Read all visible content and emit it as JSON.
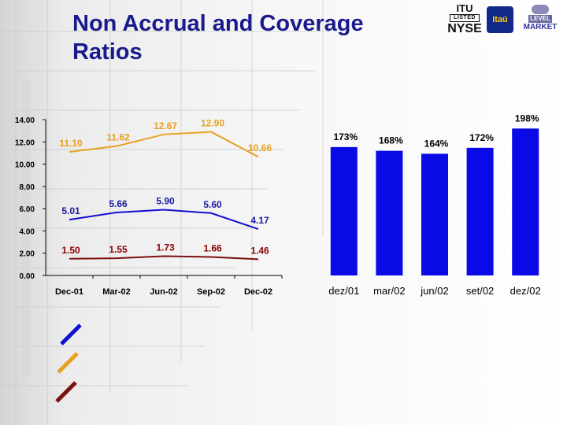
{
  "slide": {
    "title": "Non Accrual and Coverage Ratios"
  },
  "logos": {
    "itu_top": "ITU",
    "itu_listed": "LISTED",
    "itu_exchange": "NYSE",
    "itau": "Itaú",
    "level": "LEVEL",
    "market": "MARKET"
  },
  "colors": {
    "title": "#1a1a8c",
    "blue_series": "#1010d0",
    "orange_series": "#e8a020",
    "maroon_series": "#7a1010",
    "bars": "#0a0ae6",
    "label_orange": "#e8a020",
    "label_blue": "#1a1aa0",
    "label_maroon": "#8b0000"
  },
  "legend": {
    "items": [
      {
        "color_key": "blue_series"
      },
      {
        "color_key": "orange_series"
      },
      {
        "color_key": "maroon_series"
      }
    ]
  },
  "chart_data": [
    {
      "type": "line",
      "categories": [
        "Dec-01",
        "Mar-02",
        "Jun-02",
        "Sep-02",
        "Dec-02"
      ],
      "series": [
        {
          "values": [
            11.1,
            11.62,
            12.67,
            12.9,
            10.66
          ],
          "labels": [
            "11.10",
            "11.62",
            "12.67",
            "12.90",
            "10.66"
          ],
          "color_key": "orange_series"
        },
        {
          "values": [
            5.01,
            5.66,
            5.9,
            5.6,
            4.17
          ],
          "labels": [
            "5.01",
            "5.66",
            "5.90",
            "5.60",
            "4.17"
          ],
          "color_key": "blue_series"
        },
        {
          "values": [
            1.5,
            1.55,
            1.73,
            1.66,
            1.46
          ],
          "labels": [
            "1.50",
            "1.55",
            "1.73",
            "1.66",
            "1.46"
          ],
          "color_key": "maroon_series"
        }
      ],
      "ylim": [
        0,
        14
      ],
      "yticks": [
        "0.00",
        "2.00",
        "4.00",
        "6.00",
        "8.00",
        "10.00",
        "12.00",
        "14.00"
      ],
      "xlabel": "",
      "ylabel": "",
      "grid": false
    },
    {
      "type": "bar",
      "categories": [
        "dez/01",
        "mar/02",
        "jun/02",
        "set/02",
        "dez/02"
      ],
      "values": [
        173,
        168,
        164,
        172,
        198
      ],
      "labels": [
        "173%",
        "168%",
        "164%",
        "172%",
        "198%"
      ],
      "unit": "%",
      "color_key": "bars",
      "ylim": [
        0,
        210
      ],
      "axis_visible": false
    }
  ]
}
